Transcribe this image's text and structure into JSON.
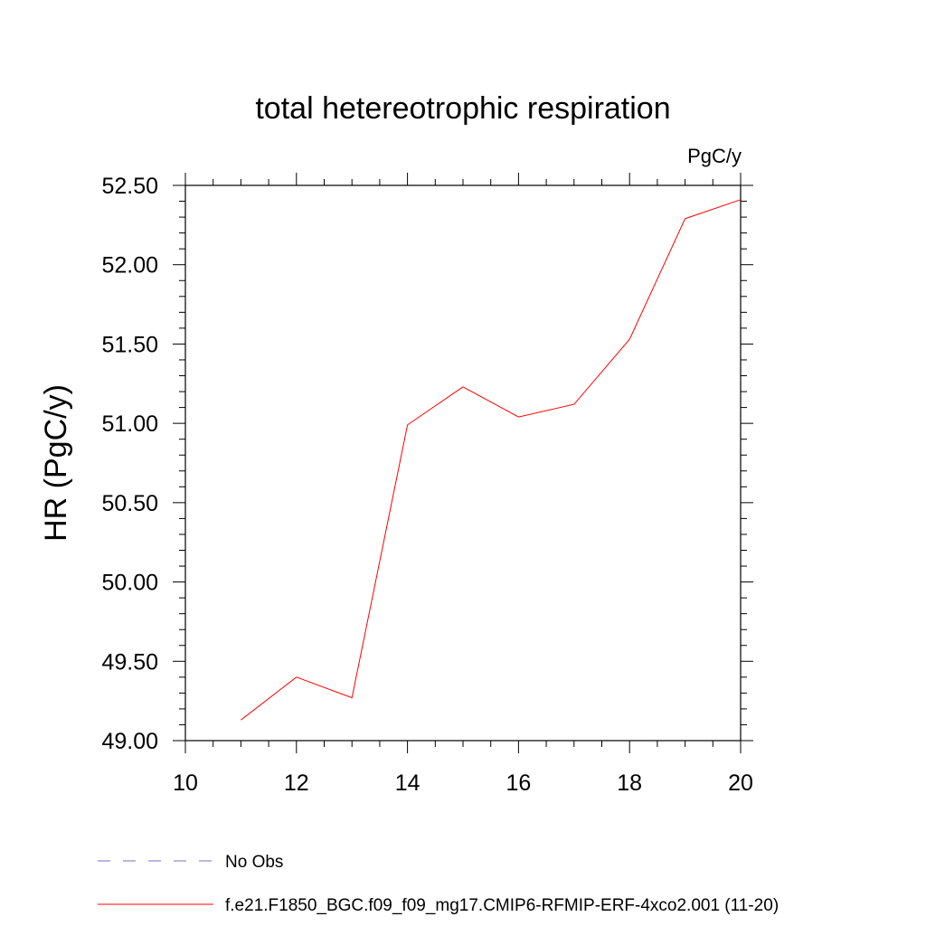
{
  "chart_data": {
    "type": "line",
    "title": "total hetereotrophic respiration",
    "units_label": "PgC/y",
    "ylabel": "HR  (PgC/y)",
    "xlabel": "",
    "xlim": [
      10,
      20
    ],
    "ylim": [
      49.0,
      52.5
    ],
    "x_ticks": [
      10,
      12,
      14,
      16,
      18,
      20
    ],
    "x_tick_labels": [
      "10",
      "12",
      "14",
      "16",
      "18",
      "20"
    ],
    "y_ticks": [
      49.0,
      49.5,
      50.0,
      50.5,
      51.0,
      51.5,
      52.0,
      52.5
    ],
    "y_tick_labels": [
      "49.00",
      "49.50",
      "50.00",
      "50.50",
      "51.00",
      "51.50",
      "52.00",
      "52.50"
    ],
    "grid": false,
    "legend_position": "bottom",
    "series": [
      {
        "name": "f.e21.F1850_BGC.f09_f09_mg17.CMIP6-RFMIP-ERF-4xco2.001 (11-20)",
        "color": "#ff0000",
        "style": "solid",
        "x": [
          11,
          12,
          13,
          14,
          15,
          16,
          17,
          18,
          19,
          20
        ],
        "y": [
          49.13,
          49.4,
          49.27,
          50.99,
          51.23,
          51.04,
          51.12,
          51.53,
          52.29,
          52.41
        ]
      }
    ],
    "legend": [
      {
        "label": "No Obs",
        "color": "#7b6fc0",
        "style": "dashed"
      },
      {
        "label": "f.e21.F1850_BGC.f09_f09_mg17.CMIP6-RFMIP-ERF-4xco2.001 (11-20)",
        "color": "#ff0000",
        "style": "solid"
      }
    ]
  }
}
